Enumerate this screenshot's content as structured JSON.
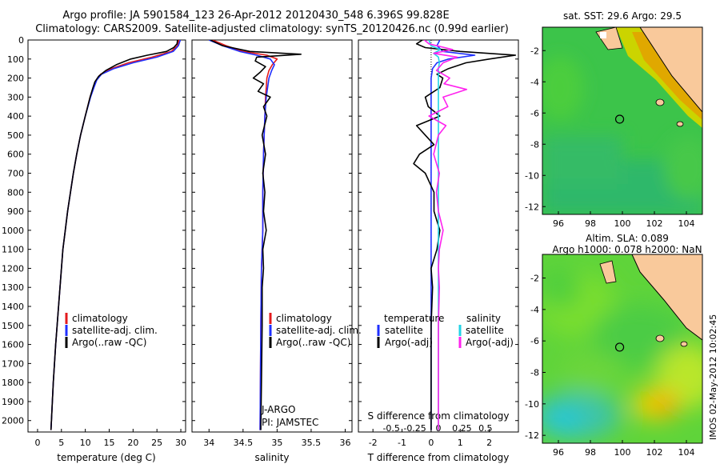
{
  "header": {
    "line1": "Argo profile: JA 5901584_123 26-Apr-2012 20120430_548 6.396S 99.828E",
    "line2": "Climatology: CARS2009. Satellite-adjusted climatology: synTS_20120426.nc (0.99d earlier)"
  },
  "colors": {
    "climatology": "#e31a1c",
    "satellite": "#1f2fff",
    "argo": "#000000",
    "cyan": "#22d3e6",
    "magenta": "#ff22ee",
    "land": "#f9c99b"
  },
  "depth_ticks": [
    "0",
    "100",
    "200",
    "300",
    "400",
    "500",
    "600",
    "700",
    "800",
    "900",
    "1000",
    "1100",
    "1200",
    "1300",
    "1400",
    "1500",
    "1600",
    "1700",
    "1800",
    "1900",
    "2000"
  ],
  "chart_data": [
    {
      "type": "line",
      "xlabel": "temperature (deg C)",
      "xticks": [
        "0",
        "5",
        "10",
        "15",
        "20",
        "25",
        "30"
      ],
      "xlim": [
        -2,
        31
      ],
      "ylim": [
        0,
        2060
      ],
      "legend": [
        "climatology",
        "satellite-adj. clim.",
        "Argo(..raw -QC)"
      ],
      "series": [
        {
          "name": "climatology",
          "color": "#e31a1c",
          "depth": [
            0,
            30,
            60,
            90,
            120,
            150,
            180,
            210,
            250,
            300,
            400,
            500,
            600,
            700,
            800,
            900,
            1000,
            1100,
            1200,
            1300,
            1400,
            1500,
            1600,
            1800,
            2000,
            2050
          ],
          "values": [
            29.6,
            29.3,
            28.0,
            24.0,
            19.0,
            15.5,
            13.2,
            12.3,
            11.7,
            11.0,
            10.0,
            9.0,
            8.2,
            7.5,
            6.9,
            6.3,
            5.8,
            5.3,
            5.0,
            4.7,
            4.4,
            4.1,
            3.8,
            3.3,
            2.9,
            2.8
          ]
        },
        {
          "name": "satellite-adj. clim.",
          "color": "#1f2fff",
          "depth": [
            0,
            30,
            60,
            90,
            120,
            150,
            180,
            210,
            250,
            300,
            400,
            500,
            600,
            700,
            800,
            900,
            1000,
            1100,
            1200,
            1300,
            1400,
            1500,
            1600,
            1800,
            2000,
            2050
          ],
          "values": [
            29.9,
            29.5,
            28.4,
            25.0,
            20.0,
            16.0,
            13.4,
            12.4,
            11.8,
            11.1,
            10.0,
            9.0,
            8.2,
            7.5,
            6.9,
            6.3,
            5.8,
            5.3,
            5.0,
            4.7,
            4.4,
            4.1,
            3.8,
            3.3,
            2.9,
            2.8
          ]
        },
        {
          "name": "Argo(..raw -QC)",
          "color": "#000000",
          "depth": [
            0,
            20,
            40,
            60,
            80,
            100,
            130,
            160,
            190,
            220,
            250,
            300,
            400,
            500,
            600,
            700,
            800,
            900,
            1000,
            1100,
            1200,
            1300,
            1400,
            1500,
            1600,
            1800,
            2000,
            2050
          ],
          "values": [
            29.3,
            29.2,
            28.5,
            27.0,
            23.0,
            19.5,
            16.5,
            14.3,
            12.8,
            12.0,
            11.6,
            11.0,
            10.0,
            9.0,
            8.2,
            7.5,
            6.9,
            6.3,
            5.8,
            5.3,
            5.0,
            4.7,
            4.4,
            4.1,
            3.8,
            3.3,
            2.9,
            2.8
          ]
        }
      ]
    },
    {
      "type": "line",
      "xlabel": "salinity",
      "xticks": [
        "34",
        "34.5",
        "35",
        "35.5",
        "36"
      ],
      "xlim": [
        33.75,
        36.1
      ],
      "ylim": [
        0,
        2060
      ],
      "legend": [
        "climatology",
        "satellite-adj. clim.",
        "Argo(..raw -QC)"
      ],
      "annotations": [
        "J-ARGO",
        "PI: JAMSTEC"
      ],
      "series": [
        {
          "name": "climatology",
          "color": "#e31a1c",
          "depth": [
            0,
            30,
            60,
            80,
            100,
            130,
            160,
            200,
            250,
            300,
            400,
            500,
            600,
            800,
            1000,
            1200,
            1500,
            2050
          ],
          "values": [
            34.05,
            34.25,
            34.5,
            34.85,
            35.0,
            34.93,
            34.88,
            34.85,
            34.84,
            34.83,
            34.82,
            34.81,
            34.8,
            34.79,
            34.79,
            34.77,
            34.76,
            34.75
          ]
        },
        {
          "name": "satellite-adj. clim.",
          "color": "#1f2fff",
          "depth": [
            0,
            30,
            60,
            80,
            100,
            130,
            160,
            200,
            250,
            300,
            400,
            500,
            600,
            800,
            1000,
            1200,
            1500,
            2050
          ],
          "values": [
            34.0,
            34.2,
            34.45,
            34.7,
            34.9,
            34.96,
            34.92,
            34.88,
            34.86,
            34.84,
            34.82,
            34.81,
            34.8,
            34.79,
            34.79,
            34.77,
            34.76,
            34.75
          ]
        },
        {
          "name": "Argo(..raw -QC)",
          "color": "#000000",
          "depth": [
            0,
            30,
            60,
            75,
            90,
            110,
            140,
            170,
            200,
            230,
            270,
            300,
            350,
            400,
            500,
            600,
            700,
            800,
            900,
            1000,
            1100,
            1200,
            1300,
            1500,
            1800,
            2050
          ],
          "values": [
            34.02,
            34.2,
            34.6,
            35.35,
            34.7,
            34.68,
            34.83,
            34.75,
            34.65,
            34.8,
            34.72,
            34.9,
            34.8,
            34.85,
            34.78,
            34.83,
            34.79,
            34.82,
            34.8,
            34.84,
            34.79,
            34.8,
            34.78,
            34.78,
            34.77,
            34.76
          ]
        }
      ]
    },
    {
      "type": "line",
      "xlabel": "T difference from climatology",
      "xticks": [
        "-2",
        "-1",
        "0",
        "1",
        "2"
      ],
      "xlim": [
        -2.5,
        3.0
      ],
      "top_xlabel": "S difference from climatology",
      "top_xticks": [
        "-0.5",
        "-0.25",
        "0",
        "0.25",
        "0.5"
      ],
      "ylim": [
        0,
        2060
      ],
      "legend_left_title": "temperature",
      "legend_right_title": "salinity",
      "legend": [
        "satellite",
        "Argo(-adj)",
        "satellite",
        "Argo(-adj)"
      ],
      "series": [
        {
          "name": "satellite",
          "color": "#1f2fff",
          "depth": [
            0,
            30,
            60,
            80,
            100,
            120,
            150,
            200,
            300,
            400,
            600,
            800,
            1000,
            1500,
            2050
          ],
          "values": [
            0.3,
            0.2,
            0.4,
            1.5,
            0.6,
            0.2,
            0.05,
            0.0,
            0.0,
            0.0,
            0.0,
            0.0,
            0.0,
            0.0,
            0.0
          ]
        },
        {
          "name": "Argo(-adj)",
          "color": "#000000",
          "depth": [
            0,
            20,
            40,
            60,
            80,
            100,
            120,
            150,
            180,
            200,
            250,
            300,
            350,
            400,
            450,
            500,
            550,
            600,
            650,
            700,
            800,
            900,
            1000,
            1100,
            1200,
            1300,
            1500,
            2050
          ],
          "values": [
            -0.3,
            -0.5,
            -0.2,
            1.0,
            2.9,
            2.0,
            1.2,
            0.6,
            0.2,
            0.4,
            0.3,
            -0.2,
            -0.1,
            0.3,
            -0.5,
            -0.2,
            0.1,
            -0.4,
            -0.6,
            -0.2,
            0.1,
            0.1,
            0.3,
            0.2,
            0.0,
            0.05,
            0.0,
            0.0
          ]
        },
        {
          "name": "satellite",
          "color": "#22d3e6",
          "depth": [
            0,
            30,
            50,
            70,
            90,
            120,
            150,
            200,
            300,
            400,
            600,
            800,
            1000,
            1500,
            2050
          ],
          "values": [
            -0.1,
            -0.08,
            0.02,
            -0.05,
            0.0,
            0.01,
            0.0,
            0.0,
            0.0,
            0.0,
            0.0,
            0.0,
            0.0,
            0.0,
            0.0
          ]
        },
        {
          "name": "Argo(-adj)",
          "color": "#ff22ee",
          "depth": [
            0,
            20,
            50,
            70,
            90,
            120,
            160,
            200,
            230,
            260,
            300,
            350,
            400,
            450,
            500,
            600,
            700,
            800,
            900,
            1000,
            1100,
            1200,
            1300,
            1500,
            2050
          ],
          "values": [
            -0.15,
            -0.1,
            0.15,
            -0.05,
            0.2,
            0.05,
            -0.02,
            0.12,
            0.06,
            0.3,
            0.05,
            0.1,
            -0.1,
            0.08,
            0.0,
            -0.05,
            0.01,
            -0.02,
            0.0,
            0.05,
            0.01,
            0.0,
            0.01,
            0.0,
            0.0
          ]
        }
      ]
    },
    {
      "type": "heatmap",
      "title": "sat. SST: 29.6 Argo: 29.5",
      "xticks": [
        "96",
        "98",
        "100",
        "102",
        "104"
      ],
      "yticks": [
        "-2",
        "-4",
        "-6",
        "-8",
        "-10",
        "-12"
      ],
      "xlim": [
        95,
        105
      ],
      "ylim": [
        -12.5,
        -0.5
      ],
      "marker": {
        "lon": 99.828,
        "lat": -6.396
      }
    },
    {
      "type": "heatmap",
      "title": "Altim. SLA: 0.089",
      "subtitle": "Argo h1000: 0.078 h2000: NaN",
      "xticks": [
        "96",
        "98",
        "100",
        "102",
        "104"
      ],
      "yticks": [
        "-2",
        "-4",
        "-6",
        "-8",
        "-10",
        "-12"
      ],
      "xlim": [
        95,
        105
      ],
      "ylim": [
        -12.5,
        -0.5
      ],
      "marker": {
        "lon": 99.828,
        "lat": -6.396
      }
    }
  ],
  "footer_stamp": "IMOS 02-May-2012 10:02:45"
}
